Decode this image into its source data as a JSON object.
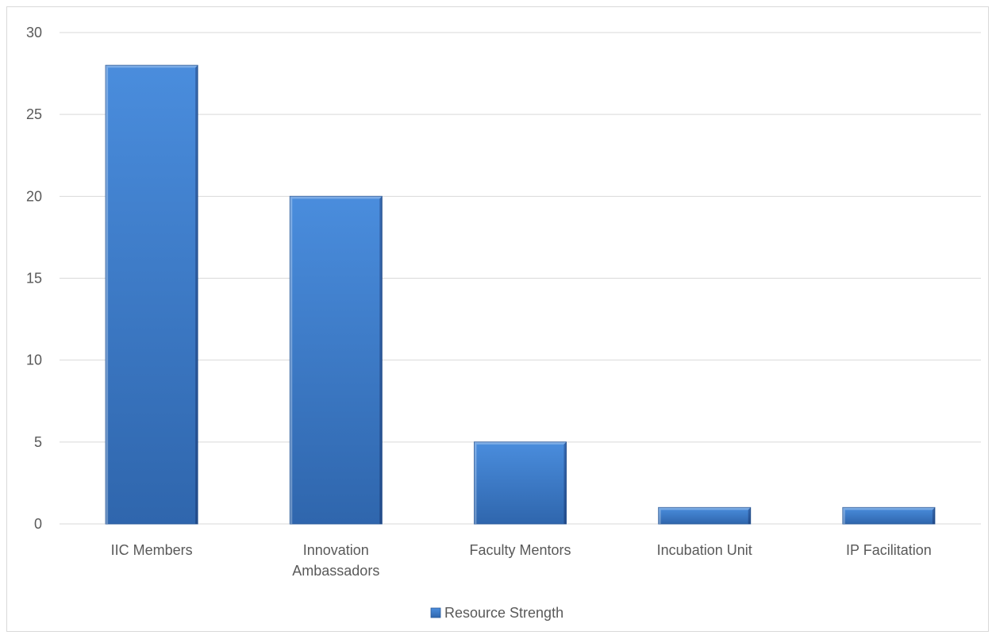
{
  "chart_data": {
    "type": "bar",
    "title": "",
    "xlabel": "",
    "ylabel": "",
    "categories": [
      [
        "IIC Members"
      ],
      [
        "Innovation",
        "Ambassadors"
      ],
      [
        "Faculty Mentors"
      ],
      [
        "Incubation Unit"
      ],
      [
        "IP Facilitation"
      ]
    ],
    "series": [
      {
        "name": "Resource Strength",
        "values": [
          28,
          20,
          5,
          1,
          1
        ],
        "color": "#4a86d4"
      }
    ],
    "ylim": [
      0,
      30
    ],
    "yticks": [
      "0",
      "5",
      "10",
      "15",
      "20",
      "25",
      "30"
    ],
    "grid": true,
    "legend": "bottom"
  }
}
